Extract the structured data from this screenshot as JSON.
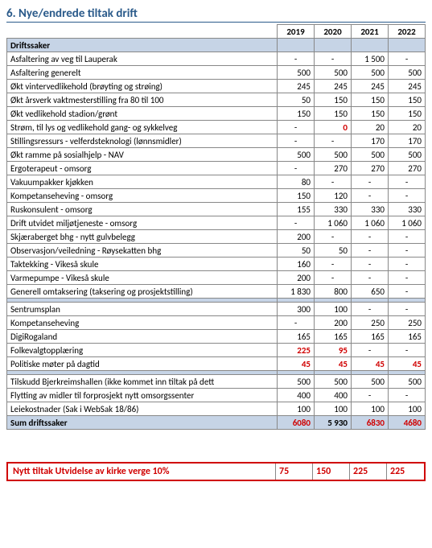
{
  "colors": {
    "heading": "#2a5a8a",
    "section_bg": "#c6d4e6",
    "red": "#d00000",
    "border": "#888888",
    "text": "#000000",
    "background": "#ffffff"
  },
  "title": "6.  Nye/endrede tiltak drift",
  "years": [
    "2019",
    "2020",
    "2021",
    "2022"
  ],
  "section1_header": "Driftssaker",
  "rows1": [
    {
      "label": "Asfaltering av veg til Lauperak",
      "v": [
        "-",
        "-",
        "1 500",
        "-"
      ]
    },
    {
      "label": "Asfaltering generelt",
      "v": [
        "500",
        "500",
        "500",
        "500"
      ]
    },
    {
      "label": "Økt vintervedlikehold (brøyting og strøing)",
      "v": [
        "245",
        "245",
        "245",
        "245"
      ]
    },
    {
      "label": "Økt årsverk vaktmesterstilling fra 80 til 100",
      "v": [
        "50",
        "150",
        "150",
        "150"
      ]
    },
    {
      "label": "Økt vedlikehold stadion/grønt",
      "v": [
        "150",
        "150",
        "150",
        "150"
      ]
    },
    {
      "label": "Strøm, til lys og vedlikehold gang- og sykkelveg",
      "v": [
        "-",
        "0",
        "20",
        "20"
      ],
      "red": [
        1
      ]
    },
    {
      "label": "Stillingsressurs - velferdsteknologi (lønnsmidler)",
      "v": [
        "-",
        "-",
        "170",
        "170"
      ]
    },
    {
      "label": "Økt ramme på sosialhjelp - NAV",
      "v": [
        "500",
        "500",
        "500",
        "500"
      ]
    },
    {
      "label": "Ergoterapeut - omsorg",
      "v": [
        "-",
        "270",
        "270",
        "270"
      ]
    },
    {
      "label": "Vakuumpakker kjøkken",
      "v": [
        "80",
        "-",
        "-",
        "-"
      ]
    },
    {
      "label": "Kompetanseheving - omsorg",
      "v": [
        "150",
        "120",
        "-",
        "-"
      ]
    },
    {
      "label": "Ruskonsulent - omsorg",
      "v": [
        "155",
        "330",
        "330",
        "330"
      ]
    },
    {
      "label": "Drift utvidet miljøtjeneste - omsorg",
      "v": [
        "-",
        "1 060",
        "1 060",
        "1 060"
      ]
    },
    {
      "label": "Skjæraberget bhg - nytt gulvbelegg",
      "v": [
        "200",
        "-",
        "-",
        "-"
      ]
    },
    {
      "label": "Observasjon/veiledning - Røysekatten bhg",
      "v": [
        "50",
        "50",
        "-",
        "-"
      ]
    },
    {
      "label": "Taktekking - Vikeså skule",
      "v": [
        "160",
        "-",
        "-",
        "-"
      ]
    },
    {
      "label": "Varmepumpe - Vikeså skule",
      "v": [
        "200",
        "-",
        "-",
        "-"
      ]
    },
    {
      "label": "Generell omtaksering (taksering og prosjektstilling)",
      "v": [
        "1 830",
        "800",
        "650",
        "-"
      ]
    }
  ],
  "rows2": [
    {
      "label": "Sentrumsplan",
      "v": [
        "300",
        "100",
        "-",
        "-"
      ]
    },
    {
      "label": "Kompetanseheving",
      "v": [
        "-",
        "200",
        "250",
        "250"
      ]
    },
    {
      "label": "DigiRogaland",
      "v": [
        "165",
        "165",
        "165",
        "165"
      ]
    },
    {
      "label": "Folkevalgtopplæring",
      "v": [
        "225",
        "95",
        "-",
        "-"
      ],
      "red": [
        0,
        1
      ]
    },
    {
      "label": "Politiske møter på dagtid",
      "v": [
        "45",
        "45",
        "45",
        "45"
      ],
      "red": [
        0,
        1,
        2,
        3
      ]
    }
  ],
  "rows3": [
    {
      "label": "Tilskudd Bjerkreimshallen (ikke kommet inn tiltak på dett",
      "v": [
        "500",
        "500",
        "500",
        "500"
      ]
    },
    {
      "label": "Flytting av midler til forprosjekt nytt omsorgssenter",
      "v": [
        "400",
        "400",
        "-",
        "-"
      ]
    },
    {
      "label": "Leiekostnader (Sak i WebSak 18/86)",
      "v": [
        "100",
        "100",
        "100",
        "100"
      ]
    }
  ],
  "sum_label": "Sum driftssaker",
  "sum_values": [
    "6080",
    "5 930",
    "6830",
    "4680"
  ],
  "sum_red": [
    0,
    2,
    3
  ],
  "footer_label": "Nytt tiltak Utvidelse av kirke verge 10%",
  "footer_values": [
    "75",
    "150",
    "225",
    "225"
  ]
}
